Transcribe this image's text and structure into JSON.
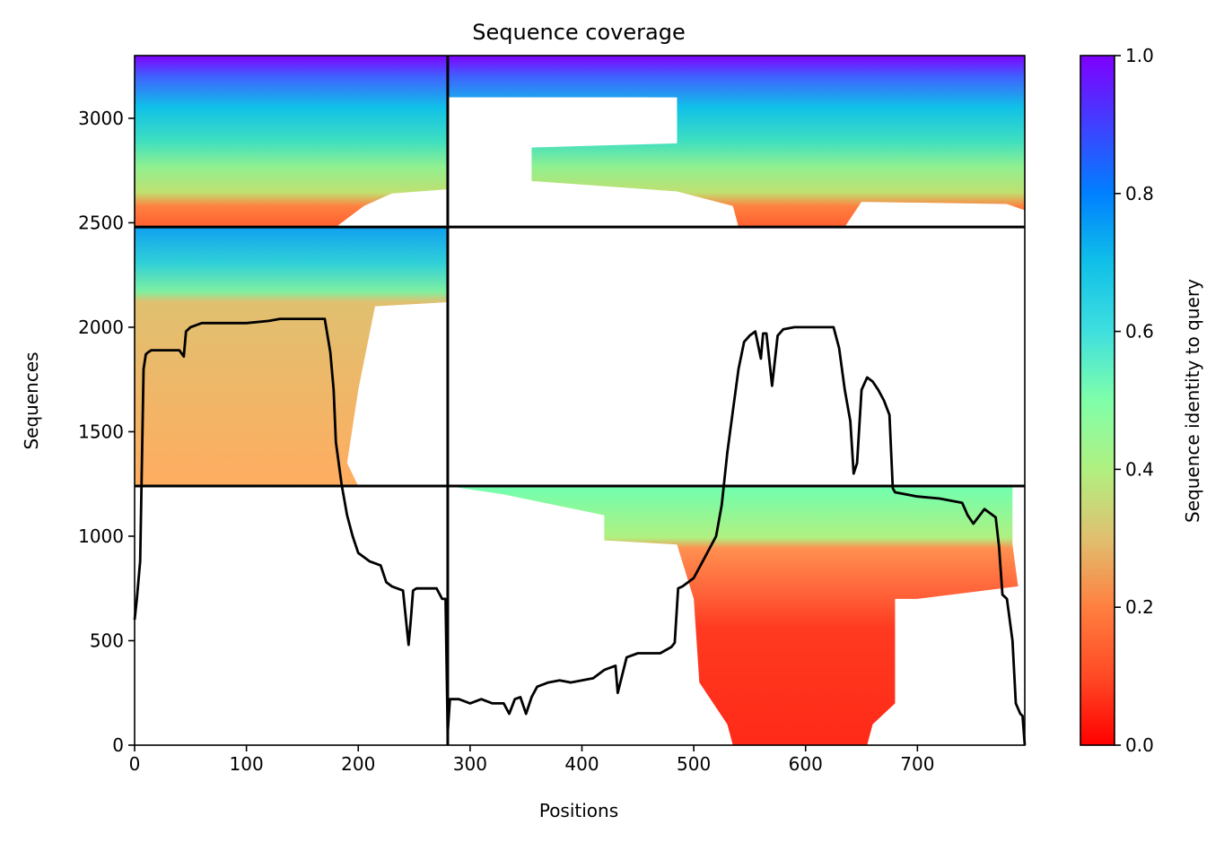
{
  "chart_data": {
    "type": "heatmap",
    "title": "Sequence coverage",
    "xlabel": "Positions",
    "ylabel": "Sequences",
    "xlim": [
      0,
      796
    ],
    "ylim": [
      0,
      3300
    ],
    "x_ticks": [
      0,
      100,
      200,
      300,
      400,
      500,
      600,
      700
    ],
    "y_ticks": [
      0,
      500,
      1000,
      1500,
      2000,
      2500,
      3000
    ],
    "colorbar": {
      "label": "Sequence identity to query",
      "range": [
        0.0,
        1.0
      ],
      "ticks": [
        "0.0",
        "0.2",
        "0.4",
        "0.6",
        "0.8",
        "1.0"
      ],
      "colormap": "rainbow_r",
      "colors": [
        "#ff0000",
        "#ff7f3f",
        "#bfff7f",
        "#3fdfdf",
        "#0080ff",
        "#7f00ff"
      ]
    },
    "chain_boundaries": {
      "x": [
        280
      ],
      "y": [
        1240,
        2480
      ]
    },
    "blocks": [
      {
        "x_range": [
          0,
          280
        ],
        "y_range": [
          2480,
          3300
        ],
        "identity_top": 1.0,
        "identity_bottom": 0.15,
        "max_x_bottom": 180
      },
      {
        "x_range": [
          280,
          796
        ],
        "y_range": [
          2480,
          3300
        ],
        "identity_top": 1.0,
        "identity_bottom": 0.15,
        "note": "partial"
      },
      {
        "x_range": [
          0,
          280
        ],
        "y_range": [
          1240,
          2480
        ],
        "identity_top": 0.85,
        "identity_bottom": 0.22,
        "max_x_bottom": 200
      },
      {
        "x_range": [
          280,
          796
        ],
        "y_range": [
          0,
          1240
        ],
        "identity_top": 0.5,
        "identity_bottom": 0.05,
        "core_x": [
          540,
          680
        ]
      }
    ],
    "series": [
      {
        "name": "",
        "type": "line",
        "color": "#000000",
        "x": [
          0,
          2,
          5,
          8,
          10,
          12,
          15,
          20,
          30,
          40,
          44,
          46,
          48,
          50,
          60,
          70,
          80,
          100,
          120,
          130,
          140,
          150,
          160,
          170,
          175,
          178,
          180,
          185,
          190,
          195,
          200,
          205,
          210,
          220,
          225,
          230,
          240,
          245,
          247,
          249,
          252,
          260,
          270,
          275,
          278,
          280,
          282,
          290,
          300,
          310,
          320,
          330,
          335,
          340,
          345,
          350,
          355,
          360,
          370,
          380,
          390,
          400,
          410,
          420,
          430,
          432,
          440,
          450,
          460,
          470,
          480,
          483,
          486,
          490,
          500,
          510,
          515,
          520,
          525,
          530,
          535,
          540,
          545,
          550,
          555,
          560,
          562,
          565,
          570,
          575,
          580,
          590,
          600,
          610,
          620,
          625,
          630,
          635,
          640,
          643,
          646,
          650,
          655,
          660,
          665,
          670,
          675,
          678,
          680,
          690,
          700,
          720,
          740,
          745,
          750,
          760,
          770,
          773,
          776,
          780,
          785,
          788,
          792,
          794,
          796
        ],
        "y": [
          600,
          700,
          880,
          1800,
          1870,
          1880,
          1890,
          1890,
          1890,
          1890,
          1860,
          1980,
          1990,
          2000,
          2020,
          2020,
          2020,
          2020,
          2030,
          2040,
          2040,
          2040,
          2040,
          2040,
          1880,
          1700,
          1450,
          1250,
          1100,
          1000,
          920,
          900,
          880,
          860,
          780,
          760,
          740,
          480,
          600,
          740,
          750,
          750,
          750,
          700,
          700,
          60,
          220,
          220,
          200,
          220,
          200,
          200,
          150,
          220,
          230,
          150,
          230,
          280,
          300,
          310,
          300,
          310,
          320,
          360,
          380,
          250,
          420,
          440,
          440,
          440,
          470,
          490,
          750,
          760,
          800,
          900,
          950,
          1000,
          1150,
          1400,
          1600,
          1800,
          1930,
          1960,
          1980,
          1850,
          1970,
          1970,
          1720,
          1960,
          1990,
          2000,
          2000,
          2000,
          2000,
          2000,
          1900,
          1700,
          1550,
          1300,
          1350,
          1700,
          1760,
          1740,
          1700,
          1650,
          1580,
          1230,
          1210,
          1200,
          1190,
          1180,
          1160,
          1100,
          1060,
          1130,
          1090,
          950,
          720,
          700,
          500,
          200,
          150,
          140,
          0
        ]
      }
    ]
  }
}
